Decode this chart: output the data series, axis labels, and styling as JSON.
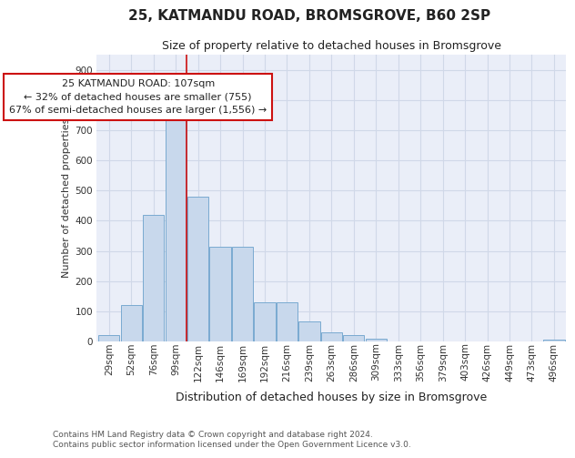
{
  "title1": "25, KATMANDU ROAD, BROMSGROVE, B60 2SP",
  "title2": "Size of property relative to detached houses in Bromsgrove",
  "xlabel": "Distribution of detached houses by size in Bromsgrove",
  "ylabel": "Number of detached properties",
  "categories": [
    "29sqm",
    "52sqm",
    "76sqm",
    "99sqm",
    "122sqm",
    "146sqm",
    "169sqm",
    "192sqm",
    "216sqm",
    "239sqm",
    "263sqm",
    "286sqm",
    "309sqm",
    "333sqm",
    "356sqm",
    "379sqm",
    "403sqm",
    "426sqm",
    "449sqm",
    "473sqm",
    "496sqm"
  ],
  "values": [
    20,
    120,
    420,
    735,
    480,
    315,
    315,
    130,
    130,
    65,
    30,
    20,
    10,
    0,
    0,
    0,
    0,
    0,
    0,
    0,
    7
  ],
  "bar_color": "#c8d8ec",
  "bar_edge_color": "#7aaad0",
  "red_line_x": 3.5,
  "annotation_text": "25 KATMANDU ROAD: 107sqm\n← 32% of detached houses are smaller (755)\n67% of semi-detached houses are larger (1,556) →",
  "annotation_box_facecolor": "#ffffff",
  "annotation_box_edgecolor": "#cc1111",
  "footer1": "Contains HM Land Registry data © Crown copyright and database right 2024.",
  "footer2": "Contains public sector information licensed under the Open Government Licence v3.0.",
  "ylim_max": 950,
  "yticks": [
    0,
    100,
    200,
    300,
    400,
    500,
    600,
    700,
    800,
    900
  ],
  "grid_color": "#d0d8e8",
  "axes_bg": "#eaeef8",
  "fig_bg": "#ffffff",
  "title1_fontsize": 11,
  "title2_fontsize": 9,
  "xlabel_fontsize": 9,
  "ylabel_fontsize": 8,
  "tick_fontsize": 7.5,
  "footer_fontsize": 6.5,
  "ann_fontsize": 8
}
